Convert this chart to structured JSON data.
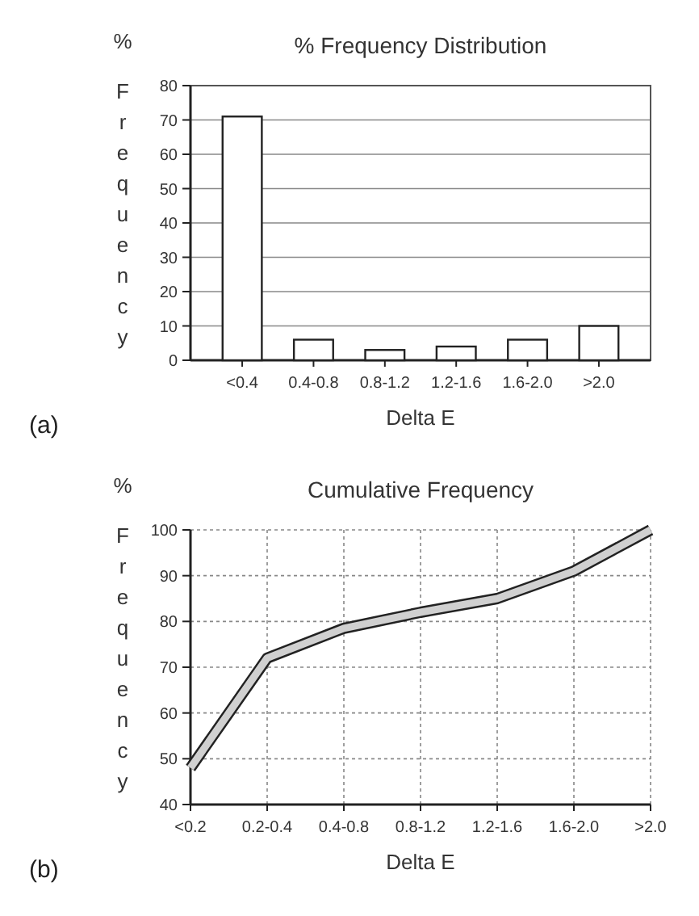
{
  "chart_data": [
    {
      "type": "bar",
      "title": "% Frequency Distribution",
      "xlabel": "Delta E",
      "ylabel": "Frequency",
      "annotations": [
        "%",
        "(a)"
      ],
      "categories": [
        "<0.4",
        "0.4-0.8",
        "0.8-1.2",
        "1.2-1.6",
        "1.6-2.0",
        ">2.0"
      ],
      "values": [
        71,
        6,
        3,
        4,
        6,
        10
      ],
      "color": "#ffffff",
      "ylim": [
        0,
        80
      ],
      "yticks": [
        0,
        10,
        20,
        30,
        40,
        50,
        60,
        70,
        80
      ],
      "grid": "y"
    },
    {
      "type": "line",
      "title": "Cumulative Frequency",
      "xlabel": "Delta E",
      "ylabel": "Frequency",
      "annotations": [
        "%",
        "(b)"
      ],
      "categories": [
        "<0.2",
        "0.2-0.4",
        "0.4-0.8",
        "0.8-1.2",
        "1.2-1.6",
        "1.6-2.0",
        ">2.0"
      ],
      "values": [
        48,
        72,
        78.5,
        82,
        85,
        91,
        100
      ],
      "color": "#d0d0d0",
      "ylim": [
        40,
        100
      ],
      "yticks": [
        40,
        50,
        60,
        70,
        80,
        90,
        100
      ],
      "grid": true,
      "marker": "none"
    }
  ]
}
